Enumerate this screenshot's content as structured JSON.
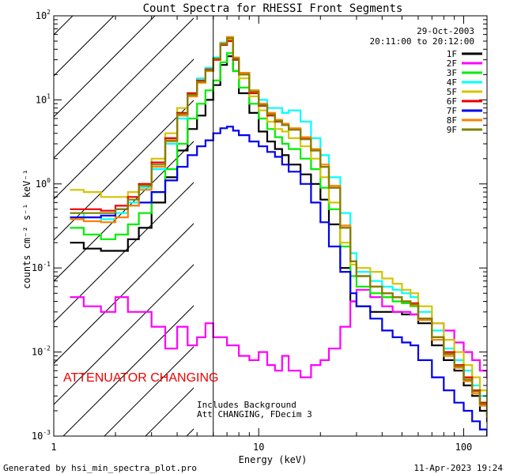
{
  "chart_data": {
    "type": "line",
    "title": "Count Spectra for RHESSI Front Segments",
    "date": "29-Oct-2003",
    "time_range": "20:11:00 to 20:12:00",
    "xlabel": "Energy (keV)",
    "ylabel": "counts cm⁻² s⁻¹ keV⁻¹",
    "x_scale": "log",
    "y_scale": "log",
    "xlim": [
      1,
      130
    ],
    "ylim": [
      0.001,
      100
    ],
    "x_ticks": [
      {
        "v": 1,
        "label": "1"
      },
      {
        "v": 10,
        "label": "10"
      },
      {
        "v": 100,
        "label": "100"
      }
    ],
    "y_ticks": [
      {
        "v": 0.001,
        "base": "10",
        "exp": "-3"
      },
      {
        "v": 0.01,
        "base": "10",
        "exp": "-2"
      },
      {
        "v": 0.1,
        "base": "10",
        "exp": "-1"
      },
      {
        "v": 1,
        "base": "10",
        "exp": "0"
      },
      {
        "v": 10,
        "base": "10",
        "exp": "1"
      },
      {
        "v": 100,
        "base": "10",
        "exp": "2"
      }
    ],
    "attenuator_line_keV": 6,
    "hatched_region_keV": [
      1,
      6
    ],
    "annotations": {
      "attenuator": "ATTENUATOR CHANGING",
      "includes": "Includes Background",
      "att_fdecim": "Att CHANGING, FDecim 3"
    },
    "footer_left": "Generated by hsi_min_spectra_plot.pro",
    "footer_right": "11-Apr-2023 19:24",
    "series": [
      {
        "name": "1F",
        "color": "#000000",
        "x": [
          1.2,
          1.4,
          1.7,
          2.0,
          2.3,
          2.6,
          3.0,
          3.5,
          4.0,
          4.5,
          5.0,
          5.5,
          6.0,
          6.5,
          7.0,
          7.5,
          8.0,
          9.0,
          10,
          11,
          12,
          13,
          14,
          16,
          18,
          20,
          22,
          25,
          28,
          30,
          35,
          40,
          45,
          50,
          55,
          60,
          70,
          80,
          90,
          100,
          110,
          120,
          130
        ],
        "y": [
          0.2,
          0.17,
          0.16,
          0.16,
          0.22,
          0.3,
          0.6,
          1.2,
          2.5,
          4.5,
          6.5,
          10,
          15,
          26,
          33,
          22,
          12,
          7,
          4.2,
          3.2,
          2.6,
          2.2,
          1.7,
          1.3,
          1.0,
          0.65,
          0.33,
          0.1,
          0.04,
          0.035,
          0.03,
          0.03,
          0.03,
          0.028,
          0.028,
          0.022,
          0.012,
          0.008,
          0.006,
          0.004,
          0.003,
          0.002,
          0.0015
        ]
      },
      {
        "name": "2F",
        "color": "#ff00ff",
        "x": [
          1.2,
          1.4,
          1.7,
          2.0,
          2.3,
          2.6,
          3.0,
          3.5,
          4.0,
          4.5,
          5.0,
          5.5,
          6.0,
          7,
          8,
          9,
          10,
          11,
          12,
          13,
          14,
          16,
          18,
          20,
          22,
          25,
          28,
          30,
          35,
          40,
          45,
          50,
          55,
          60,
          70,
          80,
          90,
          100,
          110,
          120,
          130
        ],
        "y": [
          0.045,
          0.035,
          0.03,
          0.045,
          0.03,
          0.03,
          0.02,
          0.011,
          0.02,
          0.012,
          0.015,
          0.022,
          0.015,
          0.012,
          0.009,
          0.008,
          0.01,
          0.007,
          0.006,
          0.009,
          0.006,
          0.005,
          0.007,
          0.008,
          0.011,
          0.02,
          0.04,
          0.055,
          0.045,
          0.035,
          0.03,
          0.03,
          0.028,
          0.025,
          0.022,
          0.018,
          0.013,
          0.01,
          0.008,
          0.006,
          0.005
        ]
      },
      {
        "name": "3F",
        "color": "#00ee00",
        "x": [
          1.2,
          1.4,
          1.7,
          2.0,
          2.3,
          2.6,
          3.0,
          3.5,
          4.0,
          4.5,
          5.0,
          5.5,
          6.0,
          6.5,
          7.0,
          7.5,
          8.0,
          9.0,
          10,
          11,
          12,
          13,
          14,
          16,
          18,
          20,
          22,
          25,
          28,
          30,
          35,
          40,
          45,
          50,
          55,
          60,
          70,
          80,
          90,
          100,
          110,
          120,
          130
        ],
        "y": [
          0.3,
          0.25,
          0.22,
          0.25,
          0.33,
          0.45,
          0.8,
          1.5,
          3,
          6,
          9,
          13,
          17,
          28,
          36,
          22,
          14,
          9,
          6,
          4.5,
          3.6,
          3.0,
          2.6,
          2.0,
          1.5,
          0.9,
          0.5,
          0.18,
          0.08,
          0.06,
          0.05,
          0.045,
          0.04,
          0.038,
          0.035,
          0.025,
          0.015,
          0.01,
          0.007,
          0.005,
          0.0035,
          0.0025,
          0.0018
        ]
      },
      {
        "name": "4F",
        "color": "#00ffff",
        "x": [
          1.2,
          1.4,
          1.7,
          2.0,
          2.3,
          2.6,
          3.0,
          3.5,
          4.0,
          4.5,
          5.0,
          5.5,
          6.0,
          6.5,
          7.0,
          7.5,
          8.0,
          9.0,
          10,
          11,
          12,
          13,
          14,
          16,
          18,
          20,
          22,
          25,
          28,
          30,
          35,
          40,
          45,
          50,
          55,
          60,
          70,
          80,
          90,
          100,
          110,
          120,
          130
        ],
        "y": [
          0.45,
          0.4,
          0.38,
          0.45,
          0.6,
          0.9,
          1.5,
          3,
          6,
          12,
          18,
          24,
          32,
          48,
          55,
          30,
          20,
          13,
          10,
          8,
          8,
          7,
          7.5,
          5.5,
          3.5,
          2.2,
          1.2,
          0.45,
          0.15,
          0.09,
          0.07,
          0.06,
          0.055,
          0.05,
          0.045,
          0.03,
          0.018,
          0.011,
          0.008,
          0.006,
          0.004,
          0.003,
          0.0022
        ]
      },
      {
        "name": "5F",
        "color": "#d4c400",
        "x": [
          1.2,
          1.4,
          1.7,
          2.0,
          2.3,
          2.6,
          3.0,
          3.5,
          4.0,
          4.5,
          5.0,
          5.5,
          6.0,
          6.5,
          7.0,
          7.5,
          8.0,
          9.0,
          10,
          11,
          12,
          13,
          14,
          16,
          18,
          20,
          22,
          25,
          28,
          30,
          35,
          40,
          45,
          50,
          55,
          60,
          70,
          80,
          90,
          100,
          110,
          120,
          130
        ],
        "y": [
          0.85,
          0.8,
          0.7,
          0.7,
          0.8,
          1.0,
          2.0,
          4.0,
          8,
          12,
          16,
          22,
          30,
          45,
          52,
          30,
          18,
          11,
          7.5,
          5.5,
          4.5,
          4.2,
          3.5,
          2.8,
          2.0,
          1.2,
          0.6,
          0.2,
          0.11,
          0.1,
          0.09,
          0.075,
          0.065,
          0.055,
          0.05,
          0.035,
          0.022,
          0.014,
          0.01,
          0.007,
          0.005,
          0.0035,
          0.0025
        ]
      },
      {
        "name": "6F",
        "color": "#ee0000",
        "x": [
          1.2,
          1.4,
          1.7,
          2.0,
          2.3,
          2.6,
          3.0,
          3.5,
          4.0,
          4.5,
          5.0,
          5.5,
          6.0,
          6.5,
          7.0,
          7.5,
          8.0,
          9.0,
          10,
          11,
          12,
          13,
          14,
          16,
          18,
          20,
          22,
          25,
          28,
          30,
          35,
          40,
          45,
          50,
          55,
          60,
          70,
          80,
          90,
          100,
          110,
          120,
          130
        ],
        "y": [
          0.5,
          0.5,
          0.48,
          0.55,
          0.7,
          1.0,
          1.8,
          3.5,
          7,
          12,
          17,
          23,
          30,
          45,
          50,
          30,
          20,
          12,
          8.5,
          6.5,
          5.5,
          5.0,
          4.5,
          3.5,
          2.5,
          1.6,
          0.9,
          0.3,
          0.12,
          0.08,
          0.06,
          0.05,
          0.045,
          0.04,
          0.038,
          0.025,
          0.015,
          0.01,
          0.007,
          0.005,
          0.0035,
          0.0025,
          0.0018
        ]
      },
      {
        "name": "7F",
        "color": "#0000ee",
        "x": [
          1.2,
          1.4,
          1.7,
          2.0,
          2.3,
          2.6,
          3.0,
          3.5,
          4.0,
          4.5,
          5.0,
          5.5,
          6.0,
          6.5,
          7.0,
          7.5,
          8.0,
          9.0,
          10,
          11,
          12,
          13,
          14,
          16,
          18,
          20,
          22,
          25,
          28,
          30,
          35,
          40,
          45,
          50,
          55,
          60,
          70,
          80,
          90,
          100,
          110,
          120,
          130
        ],
        "y": [
          0.4,
          0.4,
          0.42,
          0.5,
          0.55,
          0.6,
          0.8,
          1.1,
          1.6,
          2.2,
          2.8,
          3.3,
          4.0,
          4.6,
          4.8,
          4.3,
          3.8,
          3.2,
          2.8,
          2.4,
          2.1,
          1.7,
          1.4,
          1.0,
          0.6,
          0.35,
          0.18,
          0.09,
          0.05,
          0.035,
          0.025,
          0.018,
          0.015,
          0.013,
          0.012,
          0.008,
          0.005,
          0.0035,
          0.0025,
          0.002,
          0.0015,
          0.0012,
          0.001
        ]
      },
      {
        "name": "8F",
        "color": "#ff8000",
        "x": [
          1.2,
          1.4,
          1.7,
          2.0,
          2.3,
          2.6,
          3.0,
          3.5,
          4.0,
          4.5,
          5.0,
          5.5,
          6.0,
          6.5,
          7.0,
          7.5,
          8.0,
          9.0,
          10,
          11,
          12,
          13,
          14,
          16,
          18,
          20,
          22,
          25,
          28,
          30,
          35,
          40,
          45,
          50,
          55,
          60,
          70,
          80,
          90,
          100,
          110,
          120,
          130
        ],
        "y": [
          0.38,
          0.36,
          0.35,
          0.4,
          0.55,
          0.85,
          1.6,
          3.2,
          6.5,
          11,
          16,
          22,
          31,
          47,
          56,
          32,
          21,
          13,
          9,
          7,
          5.8,
          5.2,
          4.6,
          3.6,
          2.6,
          1.7,
          0.95,
          0.32,
          0.12,
          0.08,
          0.06,
          0.05,
          0.045,
          0.04,
          0.036,
          0.024,
          0.014,
          0.009,
          0.0065,
          0.0045,
          0.0032,
          0.0023,
          0.0017
        ]
      },
      {
        "name": "9F",
        "color": "#808000",
        "x": [
          1.2,
          1.4,
          1.7,
          2.0,
          2.3,
          2.6,
          3.0,
          3.5,
          4.0,
          4.5,
          5.0,
          5.5,
          6.0,
          6.5,
          7.0,
          7.5,
          8.0,
          9.0,
          10,
          11,
          12,
          13,
          14,
          16,
          18,
          20,
          22,
          25,
          28,
          30,
          35,
          40,
          45,
          50,
          55,
          60,
          70,
          80,
          90,
          100,
          110,
          120,
          130
        ],
        "y": [
          0.45,
          0.45,
          0.45,
          0.5,
          0.65,
          0.95,
          1.7,
          3.3,
          6.8,
          11.5,
          16.5,
          22.5,
          31,
          46,
          54,
          31,
          20,
          12.5,
          8.7,
          6.7,
          5.6,
          5.0,
          4.4,
          3.4,
          2.5,
          1.6,
          0.9,
          0.3,
          0.12,
          0.08,
          0.06,
          0.05,
          0.045,
          0.04,
          0.037,
          0.025,
          0.015,
          0.0095,
          0.0068,
          0.0047,
          0.0034,
          0.0024,
          0.0018
        ]
      }
    ]
  }
}
